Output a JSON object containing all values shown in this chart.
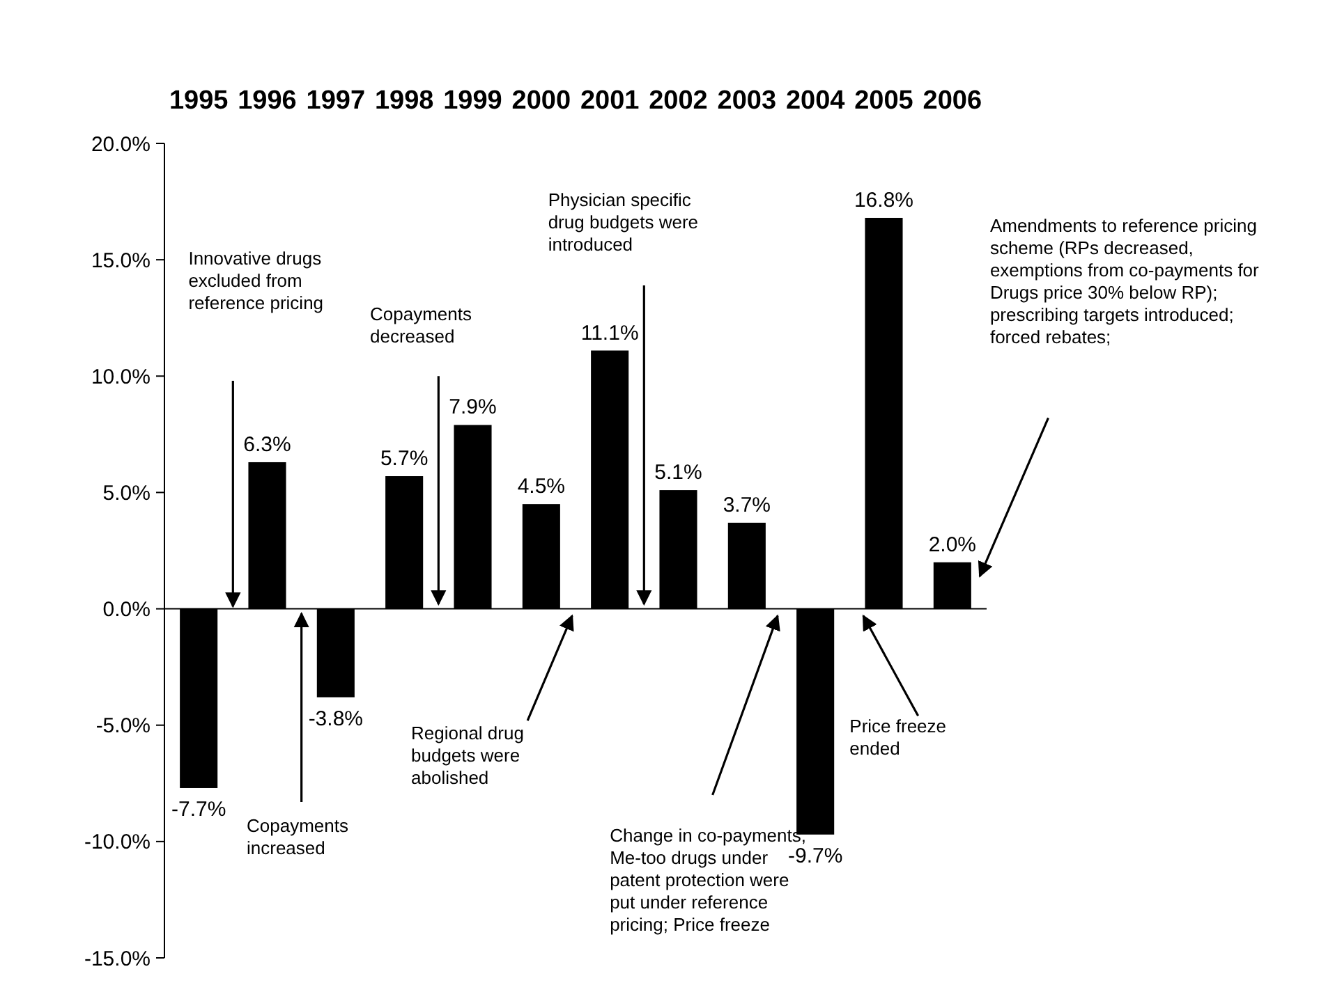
{
  "chart_data": {
    "type": "bar",
    "categories": [
      "1995",
      "1996",
      "1997",
      "1998",
      "1999",
      "2000",
      "2001",
      "2002",
      "2003",
      "2004",
      "2005",
      "2006"
    ],
    "values": [
      -7.7,
      6.3,
      -3.8,
      5.7,
      7.9,
      4.5,
      11.1,
      5.1,
      3.7,
      -9.7,
      16.8,
      2.0
    ],
    "value_labels": [
      "-7.7%",
      "6.3%",
      "-3.8%",
      "5.7%",
      "7.9%",
      "4.5%",
      "11.1%",
      "5.1%",
      "3.7%",
      "-9.7%",
      "16.8%",
      "2.0%"
    ],
    "color": "#000000",
    "ylim": [
      -15,
      20
    ],
    "yticks": [
      {
        "value": -15,
        "label": "-15.0%"
      },
      {
        "value": -10,
        "label": "-10.0%"
      },
      {
        "value": -5,
        "label": "-5.0%"
      },
      {
        "value": 0,
        "label": "0.0%"
      },
      {
        "value": 5,
        "label": "5.0%"
      },
      {
        "value": 10,
        "label": "10.0%"
      },
      {
        "value": 15,
        "label": "15.0%"
      },
      {
        "value": 20,
        "label": "20.0%"
      }
    ],
    "annotations": [
      "Innovative drugs excluded from reference pricing",
      "Copayments decreased",
      "Physician specific drug budgets were introduced",
      "Amendments to reference pricing scheme (RPs decreased, exemptions from co-payments for Drugs price 30% below RP); prescribing targets introduced; forced rebates;",
      "Copayments increased",
      "Regional drug budgets were abolished",
      "Change in co-payments; Me-too drugs under patent protection were put under reference pricing; Price freeze",
      "Price freeze ended"
    ]
  }
}
